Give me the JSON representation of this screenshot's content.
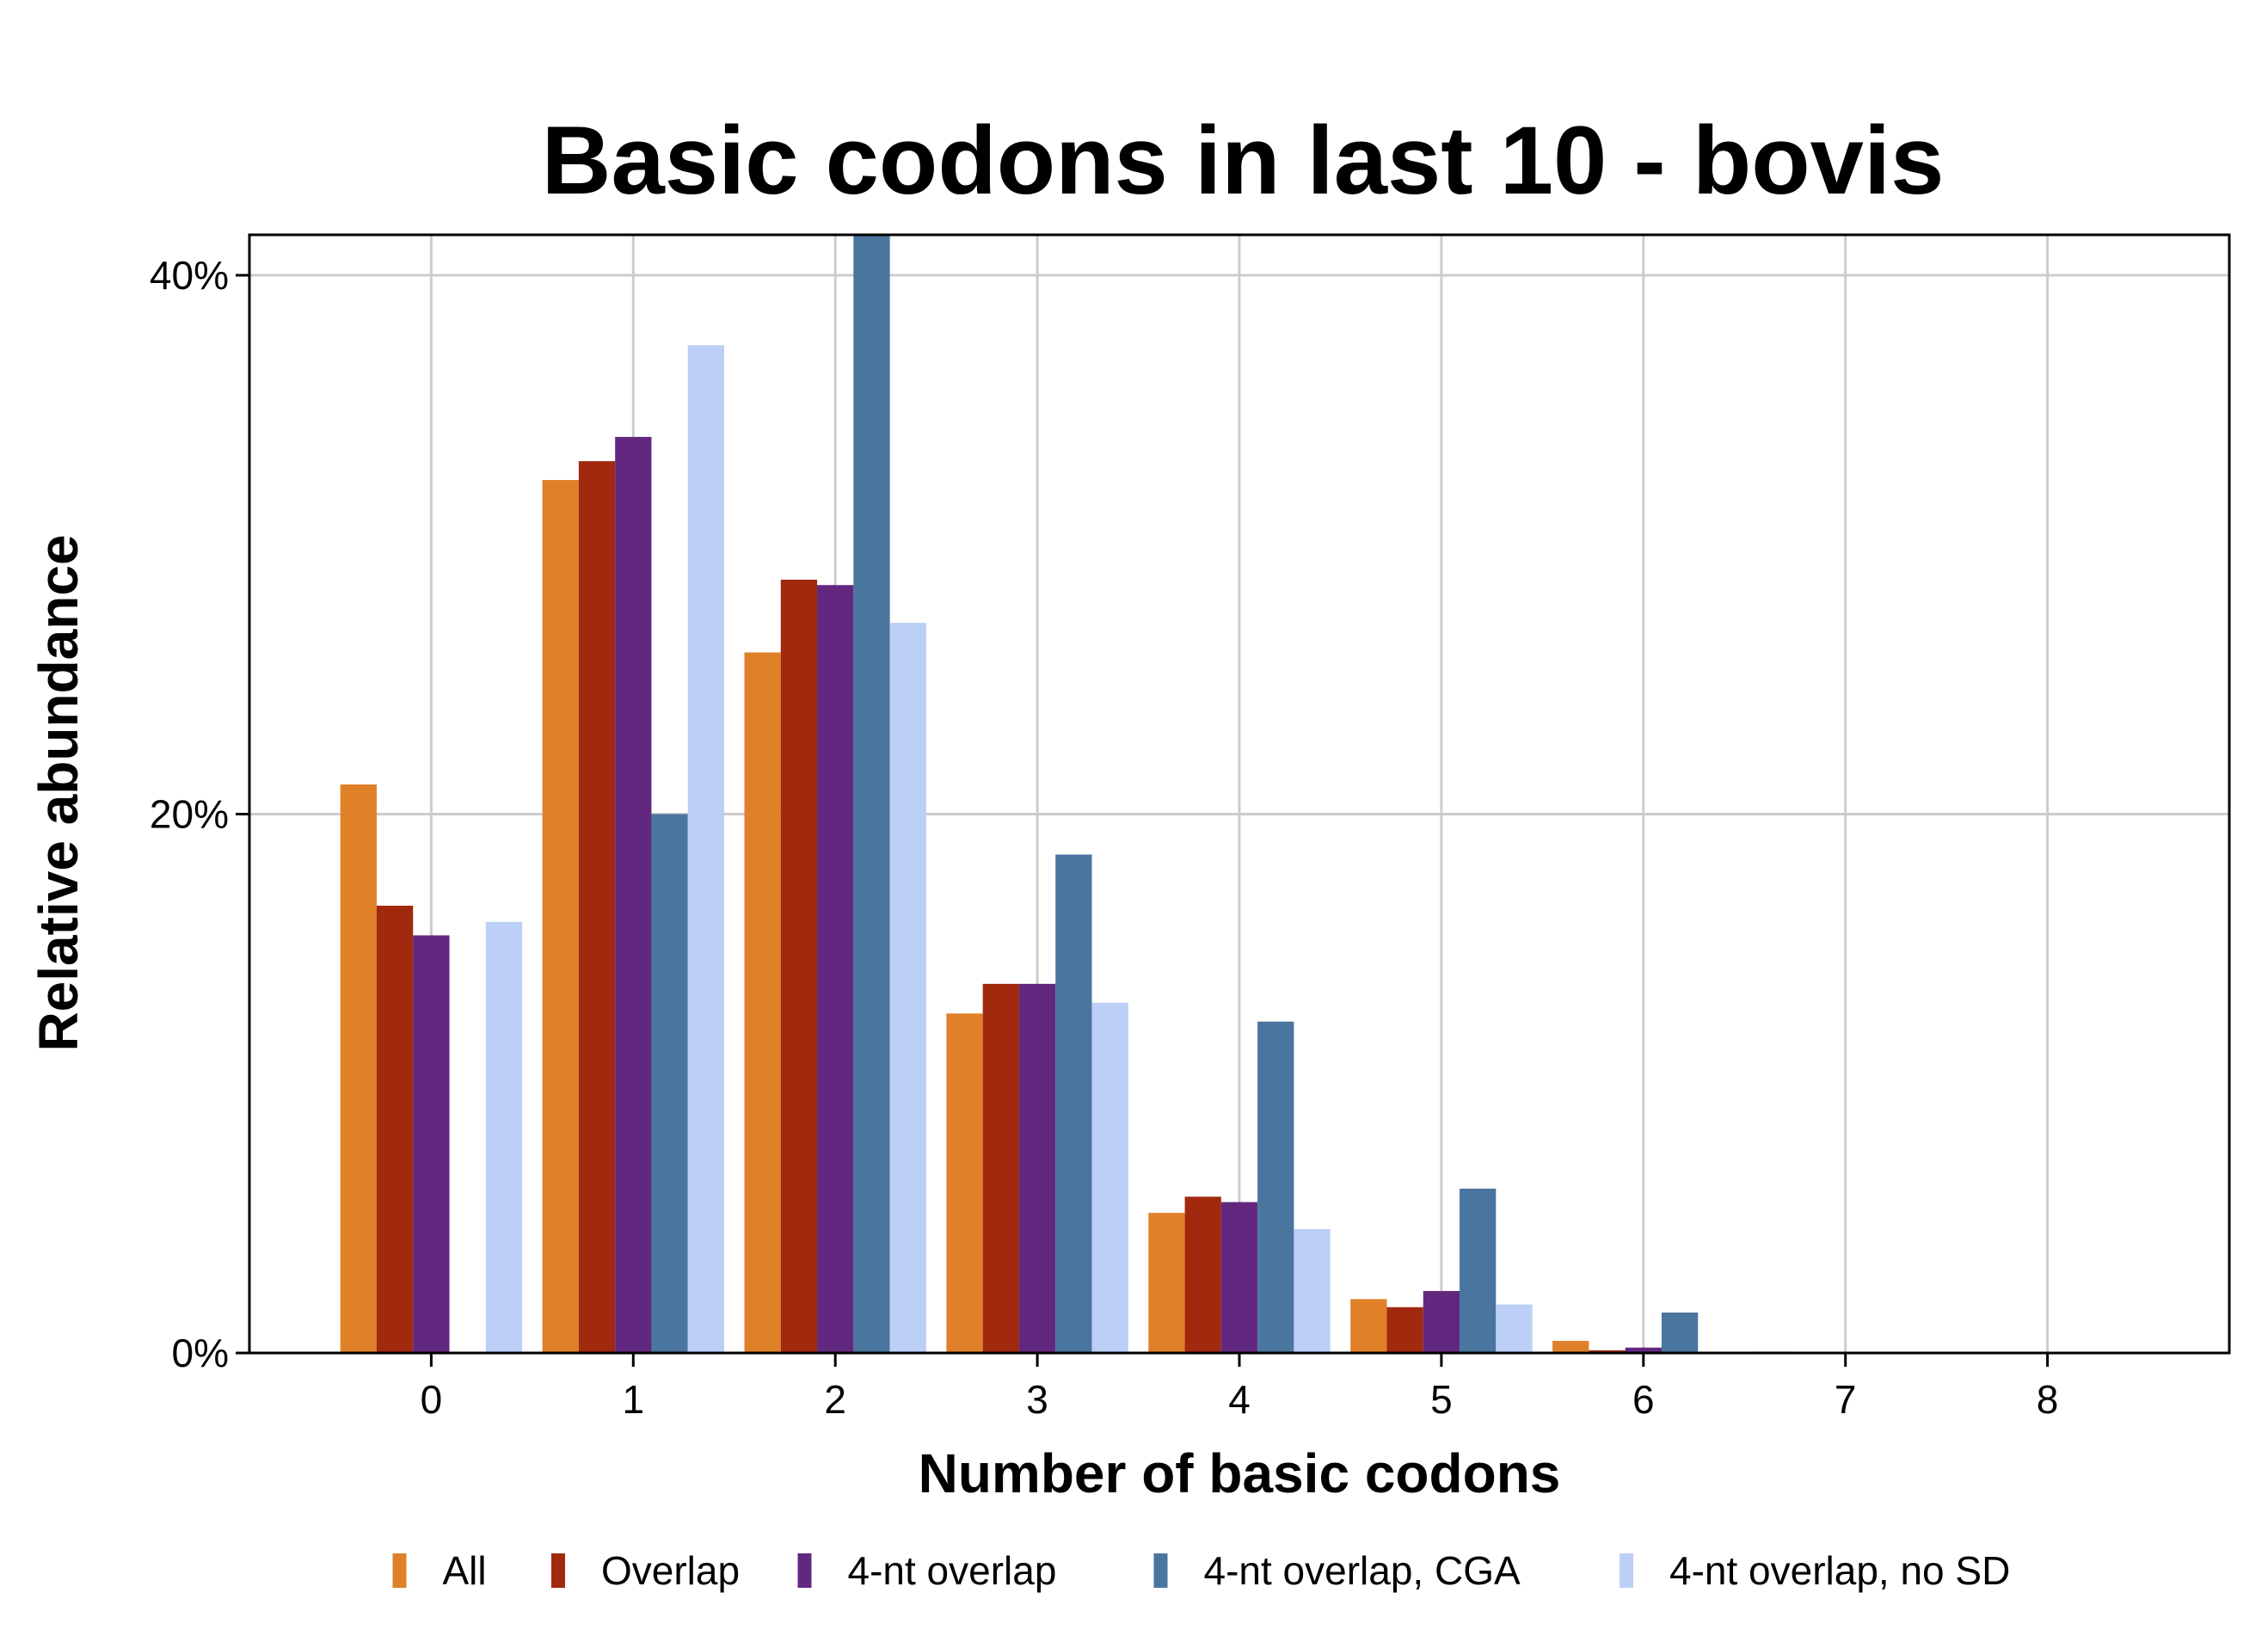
{
  "chart_data": {
    "type": "bar",
    "title": "Basic codons in last 10 - bovis",
    "xlabel": "Number of basic codons",
    "ylabel": "Relative abundance",
    "categories": [
      "0",
      "1",
      "2",
      "3",
      "4",
      "5",
      "6",
      "7",
      "8"
    ],
    "x_range": [
      -0.9,
      8.9
    ],
    "ylim": [
      0,
      41.5
    ],
    "y_ticks": [
      0,
      20,
      40
    ],
    "y_tick_labels": [
      "0%",
      "20%",
      "40%"
    ],
    "grid": true,
    "legend_position": "bottom",
    "series": [
      {
        "name": "All",
        "color": "#E08029",
        "values": [
          21.1,
          32.4,
          26.0,
          12.6,
          5.2,
          2.0,
          0.45,
          0.05,
          0.0
        ]
      },
      {
        "name": "Overlap",
        "color": "#A0290E",
        "values": [
          16.6,
          33.1,
          28.7,
          13.7,
          5.8,
          1.7,
          0.1,
          0.0,
          0.0
        ]
      },
      {
        "name": "4-nt overlap",
        "color": "#62287F",
        "values": [
          15.5,
          34.0,
          28.5,
          13.7,
          5.6,
          2.3,
          0.2,
          0.0,
          0.0
        ]
      },
      {
        "name": "4-nt overlap, CGA",
        "color": "#4A759E",
        "values": [
          null,
          20.0,
          41.6,
          18.5,
          12.3,
          6.1,
          1.5,
          0.0,
          0.0
        ]
      },
      {
        "name": "4-nt overlap, no SD",
        "color": "#BCCFF7",
        "values": [
          16.0,
          37.4,
          27.1,
          13.0,
          4.6,
          1.8,
          0.0,
          0.0,
          0.0
        ]
      }
    ]
  }
}
